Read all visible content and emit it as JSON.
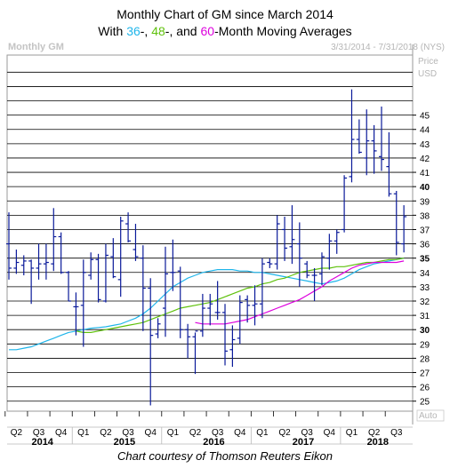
{
  "title_line1": "Monthly Chart of GM since March 2014",
  "title_line2": {
    "prefix": "With ",
    "ma36_label": "36",
    "sep1": "-, ",
    "ma48_label": "48",
    "sep2": "-, and ",
    "ma60_label": "60",
    "suffix": "-Month Moving Averages"
  },
  "footer": "Chart courtesy of Thomson Reuters Eikon",
  "chart_data": {
    "type": "line",
    "header_left": "Monthly GM",
    "header_right": "3/31/2014 - 7/31/2018 (NYS)",
    "price_label": "Price",
    "currency_label": "USD",
    "auto_label": "Auto",
    "ylim": [
      24.3,
      49.2
    ],
    "y_ticks": [
      25,
      26,
      27,
      28,
      29,
      30,
      31,
      32,
      33,
      34,
      35,
      36,
      37,
      38,
      39,
      40,
      41,
      42,
      43,
      44,
      45
    ],
    "y_bold_ticks": [
      30,
      35,
      40
    ],
    "quarter_labels": [
      "Q2",
      "Q3",
      "Q4",
      "Q1",
      "Q2",
      "Q3",
      "Q4",
      "Q1",
      "Q2",
      "Q3",
      "Q4",
      "Q1",
      "Q2",
      "Q3",
      "Q4",
      "Q1",
      "Q2",
      "Q3"
    ],
    "year_labels": [
      {
        "label": "2014",
        "month_index": 4.5
      },
      {
        "label": "2015",
        "month_index": 15.5
      },
      {
        "label": "2016",
        "month_index": 27.5
      },
      {
        "label": "2017",
        "month_index": 39.5
      },
      {
        "label": "2018",
        "month_index": 49.5
      }
    ],
    "colors": {
      "ma36": "#1fb5ea",
      "ma48": "#5fc10c",
      "ma60": "#dd00dd",
      "bars": "#0a1a9a",
      "grid": "#000000"
    },
    "ohlc": [
      [
        36.0,
        38.2,
        33.5,
        34.3
      ],
      [
        34.3,
        35.6,
        33.9,
        34.7
      ],
      [
        34.5,
        35.2,
        33.8,
        34.8
      ],
      [
        34.8,
        34.9,
        31.8,
        34.3
      ],
      [
        34.3,
        36.0,
        33.5,
        34.6
      ],
      [
        34.6,
        36.0,
        33.5,
        34.7
      ],
      [
        34.6,
        38.5,
        34.1,
        36.5
      ],
      [
        36.5,
        36.8,
        33.9,
        34.0
      ],
      [
        34.0,
        34.1,
        32.0,
        32.0
      ],
      [
        31.6,
        32.6,
        29.6,
        31.6
      ],
      [
        31.7,
        34.9,
        28.8,
        34.0
      ],
      [
        33.8,
        35.4,
        33.5,
        34.9
      ],
      [
        34.9,
        35.3,
        31.9,
        32.1
      ],
      [
        32.0,
        36.0,
        31.9,
        35.2
      ],
      [
        35.1,
        36.4,
        33.6,
        33.7
      ],
      [
        33.5,
        37.9,
        32.3,
        37.6
      ],
      [
        37.4,
        38.2,
        36.1,
        36.2
      ],
      [
        35.6,
        37.4,
        34.8,
        35.1
      ],
      [
        35.0,
        35.9,
        29.9,
        32.9
      ],
      [
        32.9,
        33.6,
        24.7,
        29.6
      ],
      [
        29.7,
        30.8,
        29.4,
        30.4
      ],
      [
        31.5,
        35.8,
        29.5,
        33.9
      ],
      [
        34.0,
        36.3,
        32.7,
        34.0
      ],
      [
        34.1,
        34.4,
        29.4,
        30.0
      ],
      [
        30.0,
        30.4,
        28.0,
        29.5
      ],
      [
        29.5,
        29.8,
        26.9,
        29.9
      ],
      [
        29.9,
        32.5,
        29.5,
        31.5
      ],
      [
        31.5,
        32.5,
        30.3,
        31.8
      ],
      [
        31.2,
        33.4,
        30.7,
        31.2
      ],
      [
        31.2,
        31.8,
        27.5,
        28.5
      ],
      [
        28.6,
        30.3,
        27.4,
        29.3
      ],
      [
        29.4,
        32.4,
        29.0,
        31.9
      ],
      [
        32.1,
        32.4,
        30.5,
        31.7
      ],
      [
        31.7,
        33.1,
        30.3,
        31.8
      ],
      [
        31.8,
        35.0,
        30.8,
        34.6
      ],
      [
        34.7,
        35.0,
        34.3,
        34.6
      ],
      [
        34.6,
        38.0,
        34.2,
        37.4
      ],
      [
        37.0,
        37.9,
        34.8,
        35.7
      ],
      [
        35.8,
        38.7,
        34.6,
        36.3
      ],
      [
        36.0,
        37.5,
        33.0,
        35.0
      ],
      [
        34.6,
        34.8,
        33.6,
        33.8
      ],
      [
        33.8,
        34.3,
        32.0,
        33.8
      ],
      [
        33.9,
        35.4,
        33.1,
        35.1
      ],
      [
        35.0,
        36.7,
        34.2,
        36.2
      ],
      [
        36.2,
        37.0,
        35.3,
        36.8
      ],
      [
        37.0,
        40.8,
        36.8,
        40.6
      ],
      [
        40.7,
        46.8,
        40.3,
        43.3
      ],
      [
        43.3,
        44.7,
        42.3,
        42.4
      ],
      [
        42.0,
        45.4,
        40.8,
        43.2
      ],
      [
        43.2,
        44.3,
        40.9,
        42.5
      ],
      [
        42.1,
        45.6,
        41.1,
        41.9
      ],
      [
        41.4,
        43.8,
        39.3,
        39.5
      ],
      [
        39.5,
        39.7,
        35.2,
        36.1
      ],
      [
        36.0,
        38.7,
        35.4,
        37.9
      ]
    ],
    "moving_averages": [
      {
        "key": "ma36",
        "name": "36",
        "color": "#1fb5ea",
        "start_month": 0,
        "values": [
          28.6,
          28.6,
          28.7,
          28.8,
          29.0,
          29.2,
          29.4,
          29.6,
          29.8,
          29.9,
          30.0,
          30.1,
          30.15,
          30.2,
          30.3,
          30.4,
          30.6,
          30.8,
          31.1,
          31.5,
          32.0,
          32.5,
          33.0,
          33.3,
          33.6,
          33.8,
          34.0,
          34.1,
          34.2,
          34.2,
          34.2,
          34.1,
          34.1,
          34.0,
          34.0,
          33.9,
          33.8,
          33.7,
          33.6,
          33.5,
          33.4,
          33.3,
          33.2,
          33.3,
          33.4,
          33.6,
          33.9,
          34.2,
          34.4,
          34.6,
          34.7,
          34.8,
          34.9,
          35.0
        ]
      },
      {
        "key": "ma48",
        "name": "48",
        "color": "#5fc10c",
        "start_month": 9,
        "values": [
          29.9,
          29.8,
          29.8,
          29.9,
          30.0,
          30.1,
          30.2,
          30.3,
          30.4,
          30.5,
          30.7,
          30.9,
          31.1,
          31.3,
          31.5,
          31.6,
          31.7,
          31.8,
          31.9,
          32.1,
          32.3,
          32.5,
          32.7,
          32.9,
          33.0,
          33.2,
          33.3,
          33.5,
          33.6,
          33.8,
          34.0,
          34.1,
          34.2,
          34.3,
          34.3,
          34.4,
          34.4,
          34.5,
          34.6,
          34.7,
          34.7,
          34.8,
          34.9,
          34.9,
          35.0
        ]
      },
      {
        "key": "ma60",
        "name": "60",
        "color": "#dd00dd",
        "start_month": 25,
        "values": [
          30.5,
          30.4,
          30.4,
          30.4,
          30.4,
          30.5,
          30.6,
          30.7,
          30.9,
          31.1,
          31.3,
          31.5,
          31.7,
          31.9,
          32.1,
          32.4,
          32.7,
          33.0,
          33.4,
          33.7,
          34.0,
          34.3,
          34.5,
          34.6,
          34.7,
          34.7,
          34.7,
          34.7,
          34.8
        ]
      }
    ]
  }
}
